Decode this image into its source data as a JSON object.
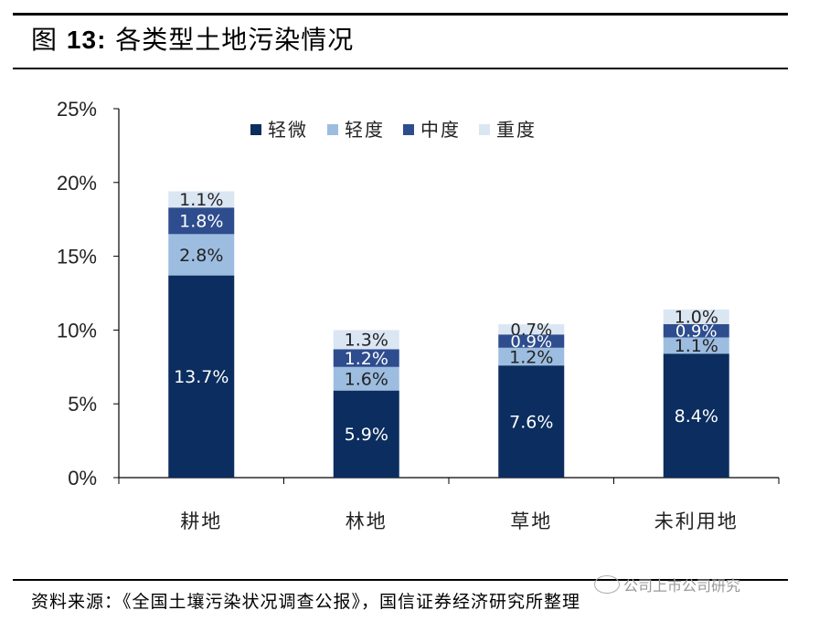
{
  "figure": {
    "title_prefix": "图",
    "title_number": "13:",
    "title_text": "各类型土地污染情况"
  },
  "source_note": "资料来源：《全国土壤污染状况调查公报》，国信证券经济研究所整理",
  "watermark": "公司上市公司研究",
  "colors": {
    "轻微": "#0b2d5f",
    "轻度": "#9cbde0",
    "中度": "#2e4d8e",
    "重度": "#dbe6f3"
  },
  "chart_data": {
    "type": "bar",
    "stacked": true,
    "categories": [
      "耕地",
      "林地",
      "草地",
      "未利用地"
    ],
    "series": [
      {
        "name": "轻微",
        "values": [
          13.7,
          5.9,
          7.6,
          8.4
        ],
        "labels": [
          "13.7%",
          "5.9%",
          "7.6%",
          "8.4%"
        ]
      },
      {
        "name": "轻度",
        "values": [
          2.8,
          1.6,
          1.2,
          1.1
        ],
        "labels": [
          "2.8%",
          "1.6%",
          "1.2%",
          "1.1%"
        ]
      },
      {
        "name": "中度",
        "values": [
          1.8,
          1.2,
          0.9,
          0.9
        ],
        "labels": [
          "1.8%",
          "1.2%",
          "0.9%",
          "0.9%"
        ]
      },
      {
        "name": "重度",
        "values": [
          1.1,
          1.3,
          0.7,
          1.0
        ],
        "labels": [
          "1.1%",
          "1.3%",
          "0.7%",
          "1.0%"
        ]
      }
    ],
    "ylim": [
      0,
      25
    ],
    "yticks": [
      0,
      5,
      10,
      15,
      20,
      25
    ],
    "ytick_labels": [
      "0%",
      "5%",
      "10%",
      "15%",
      "20%",
      "25%"
    ],
    "legend_position": "top",
    "grid": false
  }
}
